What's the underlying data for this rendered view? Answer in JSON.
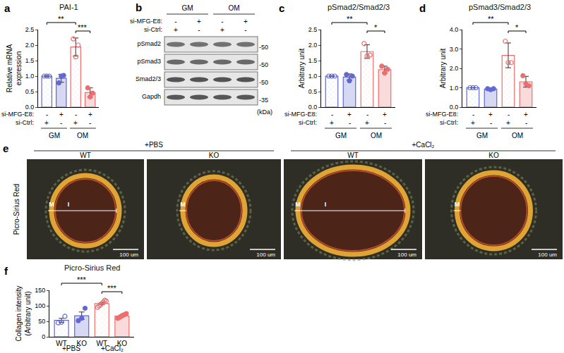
{
  "chart_data": [
    {
      "panel": "a",
      "type": "bar",
      "title": "PAI-1",
      "y_label": "Relative mRNA\nexpression",
      "categories": [
        null,
        null,
        null,
        null
      ],
      "conditions": [
        {
          "label": "si-MFG-E8:",
          "values": [
            "-",
            "+",
            "-",
            "+"
          ]
        },
        {
          "label": "si-Ctrl:",
          "values": [
            "+",
            "-",
            "+",
            "-"
          ]
        }
      ],
      "groups": [
        {
          "label": "GM",
          "from": 0,
          "to": 1
        },
        {
          "label": "OM",
          "from": 2,
          "to": 3
        }
      ],
      "values": [
        1.0,
        0.93,
        1.94,
        0.47
      ],
      "errors": [
        0.0,
        0.13,
        0.29,
        0.15
      ],
      "points": [
        [
          1.0,
          1.0,
          1.0
        ],
        [
          0.78,
          1.0,
          1.02
        ],
        [
          2.2,
          1.62,
          2.0
        ],
        [
          0.62,
          0.33,
          0.45
        ]
      ],
      "colors": [
        "#6168d4",
        "#6168d4",
        "#ec6f6f",
        "#ec6f6f"
      ],
      "ylim": [
        0,
        2.5
      ],
      "yticks": [
        {
          "value": 0,
          "label": "0.0"
        },
        {
          "value": 0.5,
          "label": "0.5"
        },
        {
          "value": 1,
          "label": "1.0"
        },
        {
          "value": 1.5,
          "label": "1.5"
        },
        {
          "value": 2,
          "label": "2.0"
        },
        {
          "value": 2.5,
          "label": "2.5"
        }
      ],
      "grid": false,
      "significance": [
        {
          "from": 0,
          "to": 2,
          "label": "**"
        },
        {
          "from": 2,
          "to": 3,
          "label": "***"
        }
      ]
    },
    {
      "panel": "c",
      "type": "bar",
      "title": "pSmad2/Smad2/3",
      "y_label": "Arbitrary unit",
      "categories": [
        null,
        null,
        null,
        null
      ],
      "conditions": [
        {
          "label": "si-MFG-E8:",
          "values": [
            "-",
            "+",
            "-",
            "+"
          ]
        },
        {
          "label": "si-Ctrl:",
          "values": [
            "+",
            "-",
            "+",
            "-"
          ]
        }
      ],
      "groups": [
        {
          "label": "GM",
          "from": 0,
          "to": 1
        },
        {
          "label": "OM",
          "from": 2,
          "to": 3
        }
      ],
      "values": [
        1.0,
        0.97,
        1.79,
        1.21
      ],
      "errors": [
        0.0,
        0.1,
        0.22,
        0.11
      ],
      "points": [
        [
          1.0,
          1.0,
          1.0
        ],
        [
          1.05,
          0.85,
          1.0
        ],
        [
          2.05,
          1.65,
          1.68
        ],
        [
          1.32,
          1.1,
          1.22
        ]
      ],
      "colors": [
        "#6168d4",
        "#6168d4",
        "#ec6f6f",
        "#ec6f6f"
      ],
      "ylim": [
        0,
        2.5
      ],
      "yticks": [
        {
          "value": 0,
          "label": "0.0"
        },
        {
          "value": 0.5,
          "label": "0.5"
        },
        {
          "value": 1,
          "label": "1.0"
        },
        {
          "value": 1.5,
          "label": "1.5"
        },
        {
          "value": 2,
          "label": "2.0"
        },
        {
          "value": 2.5,
          "label": "2.5"
        }
      ],
      "grid": false,
      "significance": [
        {
          "from": 0,
          "to": 2,
          "label": "**"
        },
        {
          "from": 2,
          "to": 3,
          "label": "*"
        }
      ]
    },
    {
      "panel": "d",
      "type": "bar",
      "title": "pSmad3/Smad2/3",
      "y_label": "Arbitrary unit",
      "categories": [
        null,
        null,
        null,
        null
      ],
      "conditions": [
        {
          "label": "si-MFG-E8:",
          "values": [
            "-",
            "+",
            "-",
            "+"
          ]
        },
        {
          "label": "si-Ctrl:",
          "values": [
            "+",
            "-",
            "+",
            "-"
          ]
        }
      ],
      "groups": [
        {
          "label": "GM",
          "from": 0,
          "to": 1
        },
        {
          "label": "OM",
          "from": 2,
          "to": 3
        }
      ],
      "values": [
        1.0,
        0.93,
        2.67,
        1.31
      ],
      "errors": [
        0.0,
        0.03,
        0.64,
        0.28
      ],
      "points": [
        [
          1.0,
          1.0,
          1.0
        ],
        [
          0.95,
          0.9,
          0.95
        ],
        [
          3.4,
          2.3,
          2.3
        ],
        [
          1.62,
          1.2,
          1.1
        ]
      ],
      "colors": [
        "#6168d4",
        "#6168d4",
        "#ec6f6f",
        "#ec6f6f"
      ],
      "ylim": [
        0,
        4
      ],
      "yticks": [
        {
          "value": 0,
          "label": "0.0"
        },
        {
          "value": 1,
          "label": "1.0"
        },
        {
          "value": 2,
          "label": "2.0"
        },
        {
          "value": 3,
          "label": "3.0"
        },
        {
          "value": 4,
          "label": "4.0"
        }
      ],
      "grid": false,
      "significance": [
        {
          "from": 0,
          "to": 2,
          "label": "**"
        },
        {
          "from": 2,
          "to": 3,
          "label": "*"
        }
      ]
    },
    {
      "panel": "f",
      "type": "bar",
      "title": "Picro-Sirius Red",
      "y_label": "Collagen intensity\n(Arbitrary unit)",
      "categories": [
        "WT",
        "KO",
        "WT",
        "KO"
      ],
      "groups": [
        {
          "label": "+PBS",
          "from": 0,
          "to": 1
        },
        {
          "label": "+CaCl₂",
          "from": 2,
          "to": 3
        }
      ],
      "values": [
        53,
        68,
        107,
        67
      ],
      "errors": [
        6.5,
        12,
        3,
        2
      ],
      "points": [
        [
          45,
          47,
          66
        ],
        [
          52,
          60,
          92
        ],
        [
          95,
          100,
          103,
          108,
          112,
          118,
          115
        ],
        [
          60,
          62,
          65,
          68,
          70,
          72,
          75
        ]
      ],
      "colors": [
        "#6168d4",
        "#6168d4",
        "#ec6f6f",
        "#ec6f6f"
      ],
      "ylim": [
        0,
        150
      ],
      "yticks": [
        0,
        50,
        100,
        150
      ],
      "grid": false,
      "significance": [
        {
          "from": 0,
          "to": 2,
          "label": "***"
        },
        {
          "from": 2,
          "to": 3,
          "label": "***"
        }
      ]
    }
  ],
  "blot": {
    "panel": "b",
    "groups": [
      {
        "label": "GM",
        "from": 0,
        "to": 1
      },
      {
        "label": "OM",
        "from": 2,
        "to": 3
      }
    ],
    "conditions": [
      {
        "label": "si-MFG-E8:",
        "values": [
          "-",
          "+",
          "-",
          "+"
        ]
      },
      {
        "label": "si-Ctrl:",
        "values": [
          "+",
          "-",
          "+",
          "-"
        ]
      }
    ],
    "rows": [
      {
        "label": "pSmad2",
        "mw": "-50"
      },
      {
        "label": "pSmad3",
        "mw": "-50"
      },
      {
        "label": "Smad2/3",
        "mw": "-50"
      },
      {
        "label": "Gapdh",
        "mw": "-35"
      }
    ],
    "unit": "(kDa)"
  },
  "micrographs": {
    "panel": "e",
    "stain": "Picro-Sirius Red",
    "groups": [
      {
        "label": "+PBS",
        "images": [
          {
            "label": "WT",
            "marks": [
              "M",
              "I"
            ]
          },
          {
            "label": "KO",
            "marks": [
              "M"
            ]
          }
        ]
      },
      {
        "label": "+CaCl₂",
        "images": [
          {
            "label": "WT",
            "marks": [
              "M",
              "I"
            ]
          },
          {
            "label": "KO",
            "marks": [
              "M"
            ]
          }
        ]
      }
    ],
    "scale_bar": "100 um"
  }
}
